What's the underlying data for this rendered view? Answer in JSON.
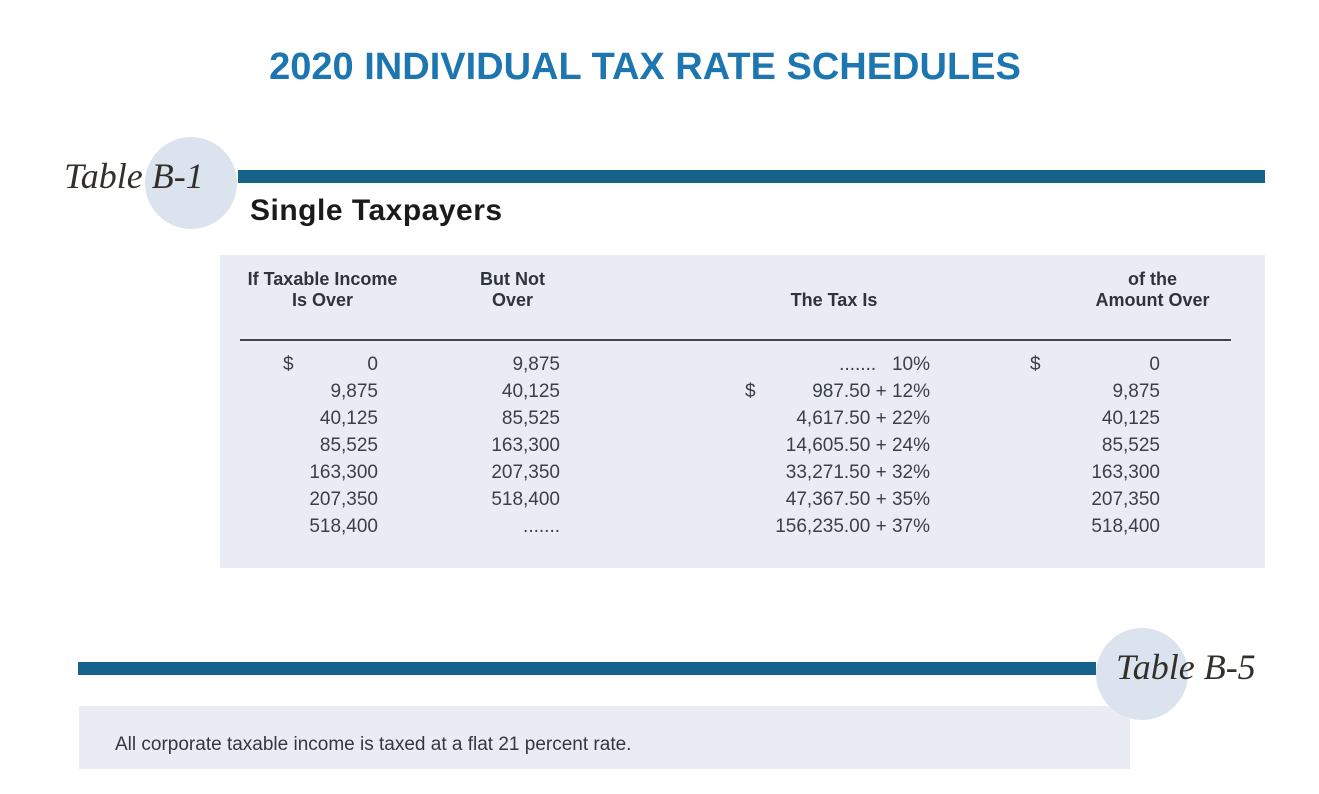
{
  "title": "2020 INDIVIDUAL TAX RATE SCHEDULES",
  "table_b1": {
    "label": "Table B-1",
    "heading": "Single Taxpayers",
    "headers": {
      "col1_line1": "If Taxable Income",
      "col1_line2": "Is Over",
      "col2_line1": "But Not",
      "col2_line2": "Over",
      "col3": "The Tax Is",
      "col4_line1": "of the",
      "col4_line2": "Amount Over"
    },
    "rows": [
      {
        "cur_over": "$",
        "over": "0",
        "but_not": "9,875",
        "cur_tax": "",
        "tax": ".......   10%",
        "cur_amt": "$",
        "amt": "0"
      },
      {
        "cur_over": "",
        "over": "9,875",
        "but_not": "40,125",
        "cur_tax": "$",
        "tax": "987.50 + 12%",
        "cur_amt": "",
        "amt": "9,875"
      },
      {
        "cur_over": "",
        "over": "40,125",
        "but_not": "85,525",
        "cur_tax": "",
        "tax": "4,617.50 + 22%",
        "cur_amt": "",
        "amt": "40,125"
      },
      {
        "cur_over": "",
        "over": "85,525",
        "but_not": "163,300",
        "cur_tax": "",
        "tax": "14,605.50 + 24%",
        "cur_amt": "",
        "amt": "85,525"
      },
      {
        "cur_over": "",
        "over": "163,300",
        "but_not": "207,350",
        "cur_tax": "",
        "tax": "33,271.50 + 32%",
        "cur_amt": "",
        "amt": "163,300"
      },
      {
        "cur_over": "",
        "over": "207,350",
        "but_not": "518,400",
        "cur_tax": "",
        "tax": "47,367.50 + 35%",
        "cur_amt": "",
        "amt": "207,350"
      },
      {
        "cur_over": "",
        "over": "518,400",
        "but_not": ".......",
        "cur_tax": "",
        "tax": "156,235.00 + 37%",
        "cur_amt": "",
        "amt": "518,400"
      }
    ]
  },
  "table_b5": {
    "label": "Table B-5",
    "note": "All corporate taxable income is taxed at a flat 21 percent rate."
  },
  "colors": {
    "title_blue": "#1e76b0",
    "bar_blue": "#15628b",
    "circle_fill": "#dbe3ee",
    "panel_bg": "#e9edf3",
    "text_dark": "#3b4048"
  }
}
